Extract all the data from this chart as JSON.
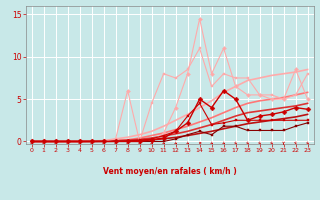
{
  "xlabel": "Vent moyen/en rafales ( km/h )",
  "background_color": "#c8e8e8",
  "grid_color": "#ffffff",
  "x_values": [
    0,
    1,
    2,
    3,
    4,
    5,
    6,
    7,
    8,
    9,
    10,
    11,
    12,
    13,
    14,
    15,
    16,
    17,
    18,
    19,
    20,
    21,
    22,
    23
  ],
  "ylim": [
    0,
    16
  ],
  "xlim": [
    0,
    23
  ],
  "yticks": [
    0,
    5,
    10,
    15
  ],
  "xticks": [
    0,
    1,
    2,
    3,
    4,
    5,
    6,
    7,
    8,
    9,
    10,
    11,
    12,
    13,
    14,
    15,
    16,
    17,
    18,
    19,
    20,
    21,
    22,
    23
  ],
  "series": [
    {
      "y": [
        0,
        0,
        0,
        0,
        0,
        0,
        0,
        0.3,
        6.0,
        0,
        0,
        1.0,
        4.0,
        8.0,
        14.5,
        8.0,
        11.0,
        6.5,
        5.5,
        5.5,
        5.0,
        5.0,
        8.5,
        5.0
      ],
      "color": "#ffaaaa",
      "lw": 0.8,
      "marker": "D",
      "ms": 2.0,
      "zorder": 3,
      "linestyle": "-"
    },
    {
      "y": [
        0,
        0,
        0,
        0,
        0,
        0,
        0,
        0,
        0,
        0,
        4.5,
        8.0,
        7.5,
        8.5,
        11.0,
        6.5,
        8.0,
        7.5,
        7.5,
        5.5,
        5.5,
        5.0,
        5.5,
        8.0
      ],
      "color": "#ffaaaa",
      "lw": 0.8,
      "marker": "s",
      "ms": 2.0,
      "zorder": 3,
      "linestyle": "-"
    },
    {
      "y": [
        0,
        0,
        0,
        0,
        0,
        0.05,
        0.1,
        0.3,
        0.5,
        0.8,
        1.2,
        1.8,
        2.5,
        3.2,
        4.0,
        4.8,
        5.8,
        6.5,
        7.2,
        7.5,
        7.8,
        8.0,
        8.2,
        8.5
      ],
      "color": "#ffaaaa",
      "lw": 1.2,
      "marker": null,
      "ms": 0,
      "zorder": 2,
      "linestyle": "-"
    },
    {
      "y": [
        0,
        0,
        0,
        0,
        0,
        0.02,
        0.05,
        0.12,
        0.2,
        0.4,
        0.7,
        1.0,
        1.4,
        1.8,
        2.3,
        2.8,
        3.4,
        4.0,
        4.5,
        4.8,
        5.0,
        5.2,
        5.5,
        5.8
      ],
      "color": "#ff7777",
      "lw": 1.2,
      "marker": null,
      "ms": 0,
      "zorder": 2,
      "linestyle": "-"
    },
    {
      "y": [
        0,
        0,
        0,
        0,
        0,
        0.01,
        0.03,
        0.07,
        0.15,
        0.25,
        0.4,
        0.65,
        0.9,
        1.2,
        1.6,
        2.0,
        2.5,
        3.0,
        3.4,
        3.6,
        3.8,
        4.0,
        4.2,
        4.5
      ],
      "color": "#dd3333",
      "lw": 1.2,
      "marker": null,
      "ms": 0,
      "zorder": 2,
      "linestyle": "-"
    },
    {
      "y": [
        0,
        0,
        0,
        0,
        0,
        0,
        0.01,
        0.03,
        0.07,
        0.12,
        0.2,
        0.32,
        0.48,
        0.7,
        0.95,
        1.2,
        1.5,
        1.8,
        2.1,
        2.3,
        2.5,
        2.7,
        2.9,
        3.2
      ],
      "color": "#bb1111",
      "lw": 1.2,
      "marker": null,
      "ms": 0,
      "zorder": 2,
      "linestyle": "-"
    },
    {
      "y": [
        0,
        0,
        0,
        0,
        0,
        0,
        0,
        0,
        0,
        0,
        0.2,
        0.4,
        1.2,
        2.2,
        5.0,
        4.0,
        6.0,
        5.0,
        2.5,
        3.0,
        3.2,
        3.5,
        4.0,
        3.8
      ],
      "color": "#cc0000",
      "lw": 1.0,
      "marker": "D",
      "ms": 2.5,
      "zorder": 5,
      "linestyle": "-"
    },
    {
      "y": [
        0,
        0,
        0,
        0,
        0,
        0,
        0,
        0,
        0.05,
        0.15,
        0.3,
        0.7,
        1.2,
        3.0,
        4.5,
        2.0,
        2.2,
        2.5,
        2.5,
        2.5,
        2.5,
        2.5,
        2.5,
        2.5
      ],
      "color": "#cc0000",
      "lw": 0.8,
      "marker": "s",
      "ms": 1.8,
      "zorder": 4,
      "linestyle": "-"
    },
    {
      "y": [
        0,
        0,
        0,
        0,
        0,
        0,
        0,
        0,
        0,
        0,
        0,
        0,
        0.3,
        0.8,
        1.2,
        0.8,
        1.8,
        1.8,
        1.3,
        1.3,
        1.3,
        1.3,
        1.8,
        2.2
      ],
      "color": "#880000",
      "lw": 0.8,
      "marker": "s",
      "ms": 1.8,
      "zorder": 4,
      "linestyle": "-"
    }
  ],
  "arrow_angles": [
    45,
    45,
    45,
    45,
    45,
    45,
    45,
    45,
    45,
    45,
    45,
    45,
    45,
    45,
    90,
    45,
    45,
    30,
    30,
    30,
    30,
    0,
    20,
    30
  ],
  "arrow_color": "#cc0000"
}
